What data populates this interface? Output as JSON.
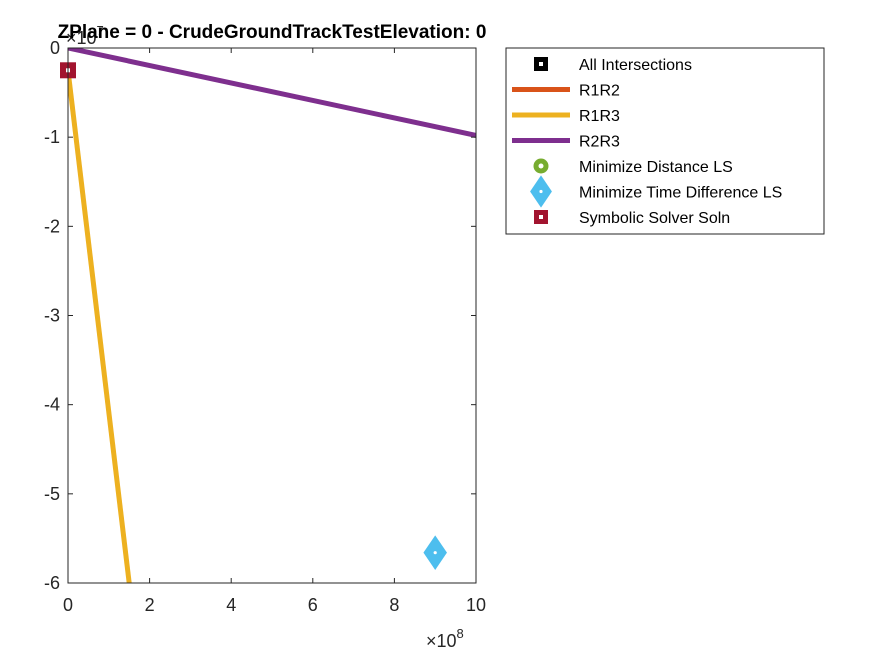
{
  "chart_data": {
    "type": "line",
    "title": "ZPlane = 0 - CrudeGroundTrackTestElevation: 0",
    "xlabel": "",
    "ylabel": "",
    "xlim": [
      0,
      1000000000
    ],
    "ylim": [
      -60000000,
      0
    ],
    "x_exponent_label": "×10",
    "x_exponent": "8",
    "y_exponent_label": "×10",
    "y_exponent": "7",
    "x_ticks": [
      0,
      200000000,
      400000000,
      600000000,
      800000000,
      1000000000
    ],
    "x_tick_labels": [
      "0",
      "2",
      "4",
      "6",
      "8",
      "10"
    ],
    "y_ticks": [
      0,
      -10000000,
      -20000000,
      -30000000,
      -40000000,
      -50000000,
      -60000000
    ],
    "y_tick_labels": [
      "0",
      "-1",
      "-2",
      "-3",
      "-4",
      "-5",
      "-6"
    ],
    "grid": false,
    "legend_position": "outside-right-top",
    "series": [
      {
        "name": "All Intersections",
        "kind": "marker",
        "marker": "square-dot",
        "color": "#000000",
        "points": []
      },
      {
        "name": "R1R2",
        "kind": "line",
        "color": "#D95319",
        "points": []
      },
      {
        "name": "R1R3",
        "kind": "line",
        "color": "#EDB120",
        "points": [
          [
            0,
            -2500000
          ],
          [
            150000000,
            -60000000
          ]
        ]
      },
      {
        "name": "R2R3",
        "kind": "line",
        "color": "#7E2F8E",
        "points": [
          [
            0,
            0
          ],
          [
            1000000000,
            -9800000
          ]
        ]
      },
      {
        "name": "Minimize Distance LS",
        "kind": "marker",
        "marker": "circle-dot",
        "color": "#77AC30",
        "points": []
      },
      {
        "name": "Minimize Time Difference LS",
        "kind": "marker",
        "marker": "diamond-dot",
        "color": "#4DBEEE",
        "points": [
          [
            900000000,
            -56600000
          ]
        ]
      },
      {
        "name": "Symbolic Solver Soln",
        "kind": "marker",
        "marker": "square-dot",
        "color": "#A2142F",
        "points": [
          [
            0,
            -2500000
          ]
        ]
      }
    ]
  }
}
